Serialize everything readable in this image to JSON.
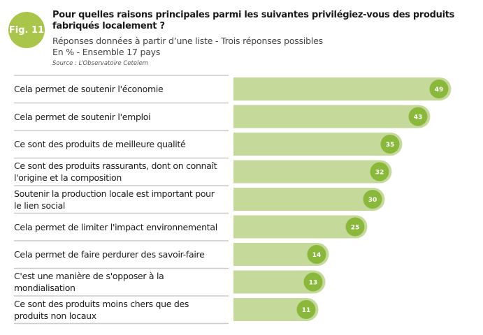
{
  "figure_badge": "Fig. 11",
  "chart_data": {
    "type": "bar",
    "orientation": "horizontal",
    "title": "Pour quelles raisons principales parmi les suivantes privilégiez-vous des produits fabriqués localement ?",
    "subtitle": "Réponses données à partir d’une liste - Trois réponses possibles",
    "unit_note": "En % - Ensemble 17 pays",
    "source": "Source : L’Observatoire Cetelem",
    "categories": [
      "Cela permet de soutenir l'économie",
      "Cela permet de soutenir l'emploi",
      "Ce sont des produits de meilleure qualité",
      "Ce sont des produits rassurants, dont on connaît l'origine et la composition",
      "Soutenir la production locale est important pour le lien social",
      "Cela permet de limiter l'impact environnemental",
      "Cela permet de faire perdurer des savoir-faire",
      "C'est une manière de s'opposer à la mondialisation",
      "Ce sont des produits moins chers que des produits non locaux"
    ],
    "values": [
      49,
      43,
      35,
      32,
      30,
      25,
      14,
      13,
      11
    ],
    "colors": {
      "bar": "#c5d99a",
      "label_circle": "#8ab83a",
      "badge": "#a9c64a"
    }
  }
}
